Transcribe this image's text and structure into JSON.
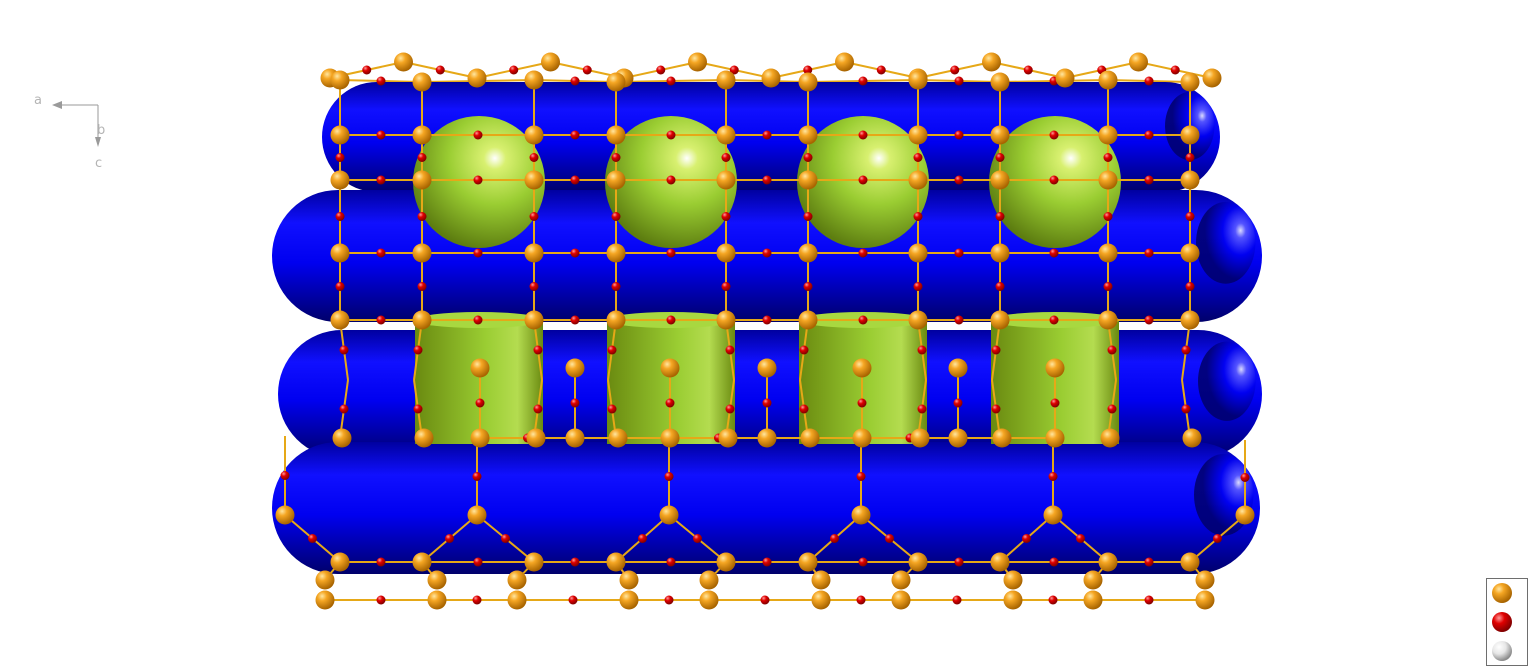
{
  "axes": {
    "a_label": "a",
    "b_label": "b",
    "c_label": "c"
  },
  "colors": {
    "framework_atom": "#f0a000",
    "bridge_atom": "#e00000",
    "bond": "#e6a817",
    "channel": "#0000f0",
    "cage": "#9acd32",
    "background": "#ffffff"
  },
  "legend": {
    "entries": [
      {
        "color": "#f0a000",
        "shape": "sphere"
      },
      {
        "color": "#e00000",
        "shape": "sphere"
      },
      {
        "color": "#e8e8e8",
        "shape": "sphere"
      }
    ]
  },
  "structure": {
    "channel_rows": 4,
    "cages_per_row": 4,
    "cage_spheres": 4,
    "cage_cylinders": 4
  }
}
